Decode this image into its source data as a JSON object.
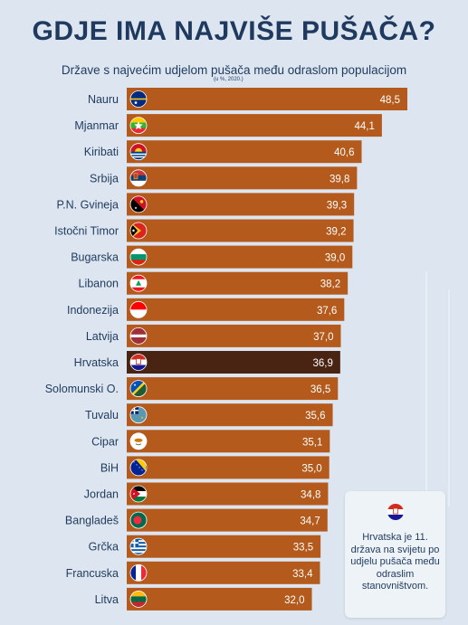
{
  "header": {
    "title": "GDJE IMA NAJVIŠE PUŠAČA?",
    "subtitle": "Države s najvećim udjelom pušača među odraslom populacijom",
    "note": "(u %, 2020.)"
  },
  "info_box": {
    "text": "Hrvatska je 11. država na svijetu po udjelu pušača među odraslim stanovništvom.",
    "flag_icon": "croatia-flag-icon"
  },
  "colors": {
    "bar": "#b35a1c",
    "highlight_bar": "#4a2412",
    "background": "#dde6f0",
    "title": "#1f3a5e"
  },
  "chart_data": {
    "type": "bar",
    "orientation": "horizontal",
    "categories": [
      "Nauru",
      "Mjanmar",
      "Kiribati",
      "Srbija",
      "P.N. Gvineja",
      "Istočni Timor",
      "Bugarska",
      "Libanon",
      "Indonezija",
      "Latvija",
      "Hrvatska",
      "Solomunski O.",
      "Tuvalu",
      "Cipar",
      "BiH",
      "Jordan",
      "Bangladeš",
      "Grčka",
      "Francuska",
      "Litva"
    ],
    "values": [
      48.5,
      44.1,
      40.6,
      39.8,
      39.3,
      39.2,
      39.0,
      38.2,
      37.6,
      37.0,
      36.9,
      36.5,
      35.6,
      35.1,
      35.0,
      34.8,
      34.7,
      33.5,
      33.4,
      32.0
    ],
    "value_labels": [
      "48,5",
      "44,1",
      "40,6",
      "39,8",
      "39,3",
      "39,2",
      "39,0",
      "38,2",
      "37,6",
      "37,0",
      "36,9",
      "36,5",
      "35,6",
      "35,1",
      "35,0",
      "34,8",
      "34,7",
      "33,5",
      "33,4",
      "32,0"
    ],
    "highlight": "Hrvatska",
    "flag_icons": [
      "nauru-flag-icon",
      "myanmar-flag-icon",
      "kiribati-flag-icon",
      "serbia-flag-icon",
      "png-flag-icon",
      "east-timor-flag-icon",
      "bulgaria-flag-icon",
      "lebanon-flag-icon",
      "indonesia-flag-icon",
      "latvia-flag-icon",
      "croatia-flag-icon",
      "solomon-islands-flag-icon",
      "tuvalu-flag-icon",
      "cyprus-flag-icon",
      "bih-flag-icon",
      "jordan-flag-icon",
      "bangladesh-flag-icon",
      "greece-flag-icon",
      "france-flag-icon",
      "lithuania-flag-icon"
    ],
    "xlim": [
      0,
      50
    ],
    "grid": false,
    "legend": "none"
  }
}
